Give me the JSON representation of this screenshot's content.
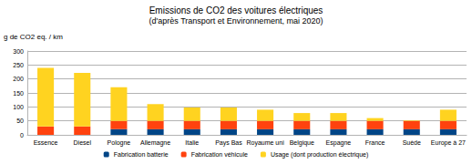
{
  "chart_data": {
    "type": "bar",
    "title": "Emissions de CO2 des voitures électriques",
    "subtitle": "(d'après Transport et Environnement, mai 2020)",
    "y_label": "g de CO2 eq. / km",
    "categories": [
      "Essence",
      "Diesel",
      "Pologne",
      "Allemagne",
      "Italie",
      "Pays Bas",
      "Royaume uni",
      "Belgique",
      "Espagne",
      "France",
      "Suède",
      "Europe à 27"
    ],
    "series": [
      {
        "name": "Fabrication batterie",
        "color": "#004586",
        "values": [
          0,
          0,
          20,
          20,
          20,
          20,
          20,
          20,
          20,
          20,
          20,
          20
        ]
      },
      {
        "name": "Fabrication véhicule",
        "color": "#ff420e",
        "values": [
          30,
          30,
          30,
          30,
          30,
          30,
          30,
          30,
          30,
          30,
          30,
          30
        ]
      },
      {
        "name": "Usage (dont production électrique)",
        "color": "#ffd320",
        "values": [
          210,
          192,
          120,
          60,
          48,
          48,
          40,
          28,
          28,
          10,
          2,
          40
        ]
      }
    ],
    "ylim": [
      0,
      300
    ],
    "yticks": [
      0,
      50,
      100,
      150,
      200,
      250,
      300
    ],
    "stacked": true,
    "grid": true,
    "legend": "bottom"
  }
}
